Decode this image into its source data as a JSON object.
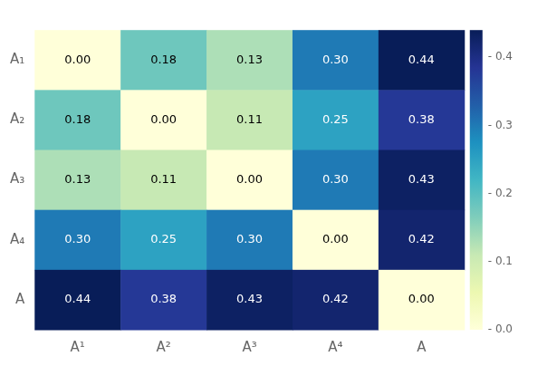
{
  "chart_data": {
    "type": "heatmap",
    "x_categories": [
      "A¹",
      "A²",
      "A³",
      "A⁴",
      "A"
    ],
    "y_categories": [
      "A₁",
      "A₂",
      "A₃",
      "A₄",
      "A"
    ],
    "values": [
      [
        0.0,
        0.18,
        0.13,
        0.3,
        0.44
      ],
      [
        0.18,
        0.0,
        0.11,
        0.25,
        0.38
      ],
      [
        0.13,
        0.11,
        0.0,
        0.3,
        0.43
      ],
      [
        0.3,
        0.25,
        0.3,
        0.0,
        0.42
      ],
      [
        0.44,
        0.38,
        0.43,
        0.42,
        0.0
      ]
    ],
    "value_labels": [
      [
        "0.00",
        "0.18",
        "0.13",
        "0.30",
        "0.44"
      ],
      [
        "0.18",
        "0.00",
        "0.11",
        "0.25",
        "0.38"
      ],
      [
        "0.13",
        "0.11",
        "0.00",
        "0.30",
        "0.43"
      ],
      [
        "0.30",
        "0.25",
        "0.30",
        "0.00",
        "0.42"
      ],
      [
        "0.44",
        "0.38",
        "0.43",
        "0.42",
        "0.00"
      ]
    ],
    "data_labels": true,
    "grid": false,
    "colorscale": [
      "#ffffd9",
      "#edf8b1",
      "#c7e9b4",
      "#7fcdbb",
      "#41b6c4",
      "#1d91c0",
      "#225ea8",
      "#253494",
      "#081d58"
    ],
    "colorbar": {
      "range": [
        0.0,
        0.44
      ],
      "ticks": [
        {
          "value": 0.0,
          "label": "- 0.0"
        },
        {
          "value": 0.1,
          "label": "- 0.1"
        },
        {
          "value": 0.2,
          "label": "- 0.2"
        },
        {
          "value": 0.3,
          "label": "- 0.3"
        },
        {
          "value": 0.4,
          "label": "- 0.4"
        }
      ]
    }
  }
}
